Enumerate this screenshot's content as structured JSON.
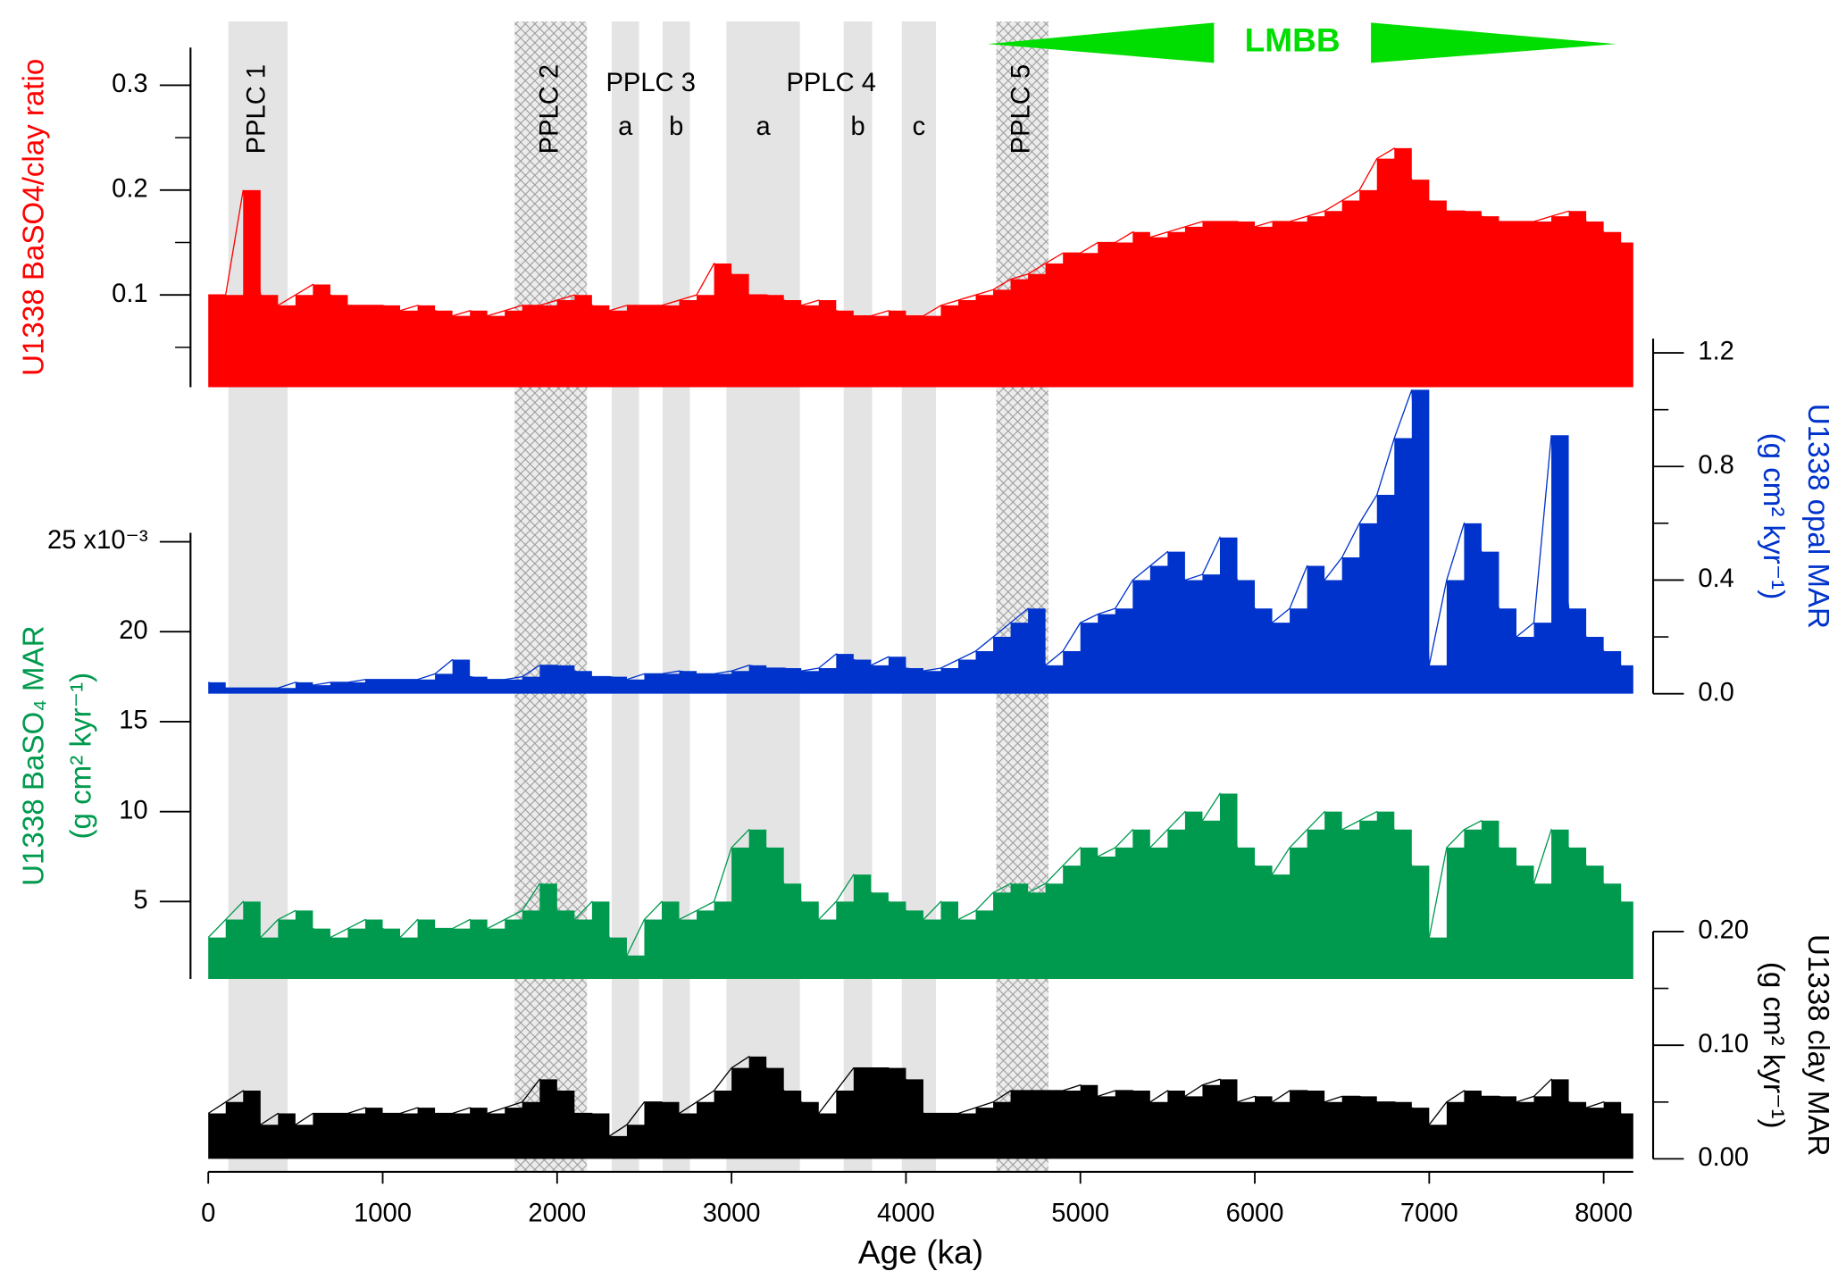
{
  "chart_data": [
    {
      "type": "area",
      "ylabel": [
        "U1338 BaSO4/clay ratio"
      ],
      "color": "#ff0000",
      "xlim": [
        0,
        8170
      ],
      "ylim": [
        0.012,
        0.336
      ],
      "yticks": [
        0.1,
        0.2,
        0.3
      ],
      "yminorticks": [
        0.05,
        0.15,
        0.25
      ],
      "x": [
        0,
        100,
        200,
        300,
        400,
        500,
        600,
        700,
        800,
        900,
        1000,
        1100,
        1200,
        1300,
        1400,
        1500,
        1600,
        1700,
        1800,
        1900,
        2000,
        2100,
        2200,
        2300,
        2400,
        2500,
        2600,
        2700,
        2800,
        2900,
        3000,
        3100,
        3200,
        3300,
        3400,
        3500,
        3600,
        3700,
        3800,
        3900,
        4000,
        4100,
        4200,
        4300,
        4400,
        4500,
        4600,
        4700,
        4800,
        4900,
        5000,
        5100,
        5200,
        5300,
        5400,
        5500,
        5600,
        5700,
        5800,
        5900,
        6000,
        6100,
        6200,
        6300,
        6400,
        6500,
        6600,
        6700,
        6800,
        6900,
        7000,
        7100,
        7200,
        7300,
        7400,
        7500,
        7600,
        7700,
        7800,
        7900,
        8000,
        8100
      ],
      "values": [
        0.1,
        0.1,
        0.2,
        0.1,
        0.09,
        0.1,
        0.11,
        0.1,
        0.09,
        0.09,
        0.09,
        0.085,
        0.09,
        0.085,
        0.08,
        0.085,
        0.08,
        0.085,
        0.09,
        0.09,
        0.095,
        0.1,
        0.09,
        0.085,
        0.09,
        0.09,
        0.09,
        0.095,
        0.1,
        0.13,
        0.12,
        0.1,
        0.1,
        0.095,
        0.09,
        0.095,
        0.085,
        0.08,
        0.08,
        0.085,
        0.08,
        0.08,
        0.09,
        0.095,
        0.1,
        0.105,
        0.115,
        0.12,
        0.13,
        0.14,
        0.14,
        0.15,
        0.15,
        0.16,
        0.155,
        0.16,
        0.165,
        0.17,
        0.17,
        0.17,
        0.165,
        0.17,
        0.17,
        0.175,
        0.18,
        0.19,
        0.2,
        0.23,
        0.24,
        0.21,
        0.19,
        0.18,
        0.18,
        0.175,
        0.17,
        0.17,
        0.17,
        0.175,
        0.18,
        0.17,
        0.16,
        0.15
      ],
      "intervals": [
        {
          "label": "PPLC 1",
          "start": 115,
          "end": 455,
          "hatched": false
        },
        {
          "label": "PPLC 2",
          "start": 1757,
          "end": 2171,
          "hatched": true
        },
        {
          "label": "PPLC 3",
          "parts": [
            {
              "label": "a",
              "start": 2313,
              "end": 2470
            },
            {
              "label": "b",
              "start": 2605,
              "end": 2761
            }
          ]
        },
        {
          "label": "PPLC 4",
          "parts": [
            {
              "label": "a",
              "start": 2971,
              "end": 3392
            },
            {
              "label": "b",
              "start": 3643,
              "end": 3806
            },
            {
              "label": "c",
              "start": 3976,
              "end": 4172
            }
          ]
        },
        {
          "label": "PPLC 5",
          "start": 4518,
          "end": 4817,
          "hatched": true
        }
      ],
      "lmbb": {
        "label": "LMBB",
        "start": 4470,
        "end": 8070,
        "color": "#00dd00"
      }
    },
    {
      "type": "area",
      "ylabel": [
        "U1338 opal MAR",
        "(g  cm² kyr⁻¹)"
      ],
      "color": "#0033cc",
      "xlim": [
        0,
        8170
      ],
      "ylim": [
        0,
        1.25
      ],
      "yticks": [
        {
          "value": 0,
          "label": "0.0"
        },
        0.4,
        0.8,
        1.2
      ],
      "yminorticks": [
        0.2,
        0.6,
        1.0
      ],
      "x": [
        0,
        100,
        200,
        300,
        400,
        500,
        600,
        700,
        800,
        900,
        1000,
        1100,
        1200,
        1300,
        1400,
        1500,
        1600,
        1700,
        1800,
        1900,
        2000,
        2100,
        2200,
        2300,
        2400,
        2500,
        2600,
        2700,
        2800,
        2900,
        3000,
        3100,
        3200,
        3300,
        3400,
        3500,
        3600,
        3700,
        3800,
        3900,
        4000,
        4100,
        4200,
        4300,
        4400,
        4500,
        4600,
        4700,
        4800,
        4900,
        5000,
        5100,
        5200,
        5300,
        5400,
        5500,
        5600,
        5700,
        5800,
        5900,
        6000,
        6100,
        6200,
        6300,
        6400,
        6500,
        6600,
        6700,
        6800,
        6900,
        7000,
        7100,
        7200,
        7300,
        7400,
        7500,
        7600,
        7700,
        7800,
        7900,
        8000,
        8100
      ],
      "values": [
        0.04,
        0.02,
        0.02,
        0.02,
        0.02,
        0.04,
        0.03,
        0.04,
        0.04,
        0.05,
        0.05,
        0.05,
        0.05,
        0.07,
        0.12,
        0.06,
        0.05,
        0.05,
        0.06,
        0.1,
        0.1,
        0.08,
        0.06,
        0.06,
        0.05,
        0.07,
        0.07,
        0.08,
        0.07,
        0.07,
        0.08,
        0.1,
        0.09,
        0.09,
        0.08,
        0.09,
        0.14,
        0.12,
        0.1,
        0.13,
        0.09,
        0.08,
        0.09,
        0.12,
        0.15,
        0.2,
        0.25,
        0.3,
        0.1,
        0.15,
        0.25,
        0.28,
        0.3,
        0.4,
        0.45,
        0.5,
        0.4,
        0.42,
        0.55,
        0.4,
        0.3,
        0.25,
        0.3,
        0.45,
        0.4,
        0.48,
        0.6,
        0.7,
        0.9,
        1.07,
        0.1,
        0.4,
        0.6,
        0.5,
        0.3,
        0.2,
        0.25,
        0.91,
        0.3,
        0.2,
        0.15,
        0.1
      ]
    },
    {
      "type": "area",
      "ylabel": [
        "U1338 BaSO₄ MAR",
        "(g  cm² kyr⁻¹)"
      ],
      "color": "#009a4e",
      "xlim": [
        0,
        8170
      ],
      "ylim": [
        0.7,
        25.5
      ],
      "yticks": [
        5,
        10,
        15,
        20,
        {
          "value": 25,
          "label": "25 x10⁻³"
        }
      ],
      "x": [
        0,
        100,
        200,
        300,
        400,
        500,
        600,
        700,
        800,
        900,
        1000,
        1100,
        1200,
        1300,
        1400,
        1500,
        1600,
        1700,
        1800,
        1900,
        2000,
        2100,
        2200,
        2300,
        2400,
        2500,
        2600,
        2700,
        2800,
        2900,
        3000,
        3100,
        3200,
        3300,
        3400,
        3500,
        3600,
        3700,
        3800,
        3900,
        4000,
        4100,
        4200,
        4300,
        4400,
        4500,
        4600,
        4700,
        4800,
        4900,
        5000,
        5100,
        5200,
        5300,
        5400,
        5500,
        5600,
        5700,
        5800,
        5900,
        6000,
        6100,
        6200,
        6300,
        6400,
        6500,
        6600,
        6700,
        6800,
        6900,
        7000,
        7100,
        7200,
        7300,
        7400,
        7500,
        7600,
        7700,
        7800,
        7900,
        8000,
        8100
      ],
      "values": [
        3,
        4,
        5,
        3,
        4,
        4.5,
        3.5,
        3,
        3.5,
        4,
        3.5,
        3,
        4,
        3.5,
        3.5,
        4,
        3.5,
        4,
        4.5,
        6,
        4.5,
        4,
        5,
        3,
        2,
        4,
        5,
        4,
        4.5,
        5,
        8,
        9,
        8,
        6,
        5,
        4,
        5,
        6.5,
        5.5,
        5,
        4.5,
        4,
        5,
        4,
        4.5,
        5.5,
        6,
        5.5,
        6,
        7,
        8,
        7.5,
        8,
        9,
        8,
        9,
        10,
        9.5,
        11,
        8,
        7,
        6.5,
        8,
        9,
        10,
        9,
        9.5,
        10,
        9,
        7,
        3,
        8,
        9,
        9.5,
        8,
        7,
        6,
        9,
        8,
        7,
        6,
        5
      ]
    },
    {
      "type": "area",
      "ylabel": [
        "U1338 clay MAR",
        "(g  cm² kyr⁻¹)"
      ],
      "xlabel": "Age (ka)",
      "color": "#000000",
      "xlim": [
        0,
        8170
      ],
      "xticks": [
        0,
        1000,
        2000,
        3000,
        4000,
        5000,
        6000,
        7000,
        8000
      ],
      "ylim": [
        0,
        0.2
      ],
      "yticks": [
        {
          "value": 0,
          "label": "0.00"
        },
        {
          "value": 0.1,
          "label": "0.10"
        },
        {
          "value": 0.2,
          "label": "0.20"
        }
      ],
      "yminorticks": [
        0.05,
        0.15
      ],
      "x": [
        0,
        100,
        200,
        300,
        400,
        500,
        600,
        700,
        800,
        900,
        1000,
        1100,
        1200,
        1300,
        1400,
        1500,
        1600,
        1700,
        1800,
        1900,
        2000,
        2100,
        2200,
        2300,
        2400,
        2500,
        2600,
        2700,
        2800,
        2900,
        3000,
        3100,
        3200,
        3300,
        3400,
        3500,
        3600,
        3700,
        3800,
        3900,
        4000,
        4100,
        4200,
        4300,
        4400,
        4500,
        4600,
        4700,
        4800,
        4900,
        5000,
        5100,
        5200,
        5300,
        5400,
        5500,
        5600,
        5700,
        5800,
        5900,
        6000,
        6100,
        6200,
        6300,
        6400,
        6500,
        6600,
        6700,
        6800,
        6900,
        7000,
        7100,
        7200,
        7300,
        7400,
        7500,
        7600,
        7700,
        7800,
        7900,
        8000,
        8100
      ],
      "values": [
        0.04,
        0.05,
        0.06,
        0.03,
        0.04,
        0.03,
        0.04,
        0.04,
        0.04,
        0.045,
        0.04,
        0.04,
        0.045,
        0.04,
        0.04,
        0.045,
        0.04,
        0.045,
        0.05,
        0.07,
        0.06,
        0.04,
        0.04,
        0.02,
        0.03,
        0.05,
        0.05,
        0.04,
        0.05,
        0.06,
        0.08,
        0.09,
        0.08,
        0.06,
        0.05,
        0.04,
        0.06,
        0.08,
        0.08,
        0.08,
        0.07,
        0.04,
        0.04,
        0.04,
        0.045,
        0.05,
        0.06,
        0.06,
        0.06,
        0.06,
        0.065,
        0.055,
        0.06,
        0.06,
        0.05,
        0.06,
        0.055,
        0.065,
        0.07,
        0.05,
        0.055,
        0.05,
        0.06,
        0.06,
        0.05,
        0.055,
        0.055,
        0.05,
        0.05,
        0.045,
        0.03,
        0.05,
        0.06,
        0.055,
        0.055,
        0.05,
        0.055,
        0.07,
        0.05,
        0.045,
        0.05,
        0.04
      ]
    }
  ]
}
